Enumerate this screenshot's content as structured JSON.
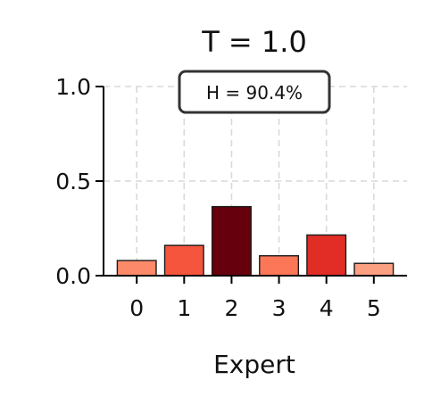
{
  "chart_data": {
    "type": "bar",
    "title": "T = 1.0",
    "xlabel": "Expert",
    "ylabel": "",
    "categories": [
      "0",
      "1",
      "2",
      "3",
      "4",
      "5"
    ],
    "values": [
      0.08,
      0.16,
      0.365,
      0.105,
      0.215,
      0.065
    ],
    "ylim": [
      0,
      1.0
    ],
    "yticks": [
      "0.0",
      "0.5",
      "1.0"
    ],
    "grid": true,
    "annotation": "H = 90.4%",
    "colors": [
      "#fc8a6a",
      "#f5553c",
      "#67000d",
      "#fc7757",
      "#e12d26",
      "#fca082"
    ]
  }
}
